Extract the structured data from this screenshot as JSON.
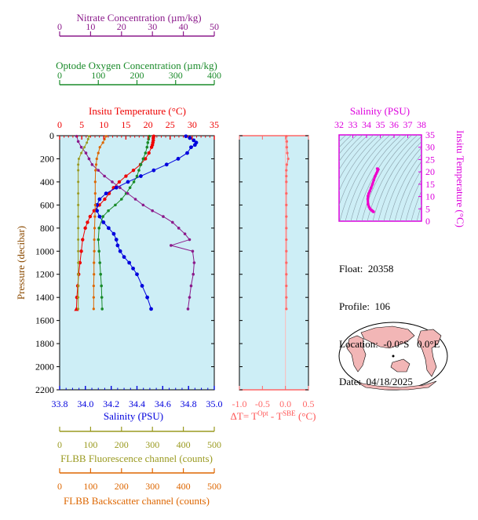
{
  "colors": {
    "nitrate": "#8b1a8b",
    "oxygen": "#1a8b2a",
    "temperature": "#ee0000",
    "salinity": "#0000dd",
    "fluorescence": "#9a9a20",
    "backscatter": "#dd6600",
    "delta_t": "#ff6666",
    "ts_axis": "#dd00dd",
    "plot_bg": "#cdeef6"
  },
  "float_info": {
    "float": "Float:  20358",
    "profile": "Profile:  106",
    "location": "Location:  -0.0°S   0.0°E",
    "date": "Date:  04/18/2025"
  },
  "chart_data": [
    {
      "type": "line",
      "id": "main-profile",
      "ylabel": "Pressure (decibar)",
      "y_ticks": [
        0,
        200,
        400,
        600,
        800,
        1000,
        1200,
        1400,
        1600,
        1800,
        2000,
        2200
      ],
      "ylim": [
        0,
        2200
      ],
      "y_inverted": true,
      "axes": {
        "nitrate": {
          "label": "Nitrate Concentration (µm/kg)",
          "range": [
            0,
            50
          ],
          "ticks": [
            0,
            10,
            20,
            30,
            40,
            50
          ]
        },
        "oxygen": {
          "label": "Optode Oxygen Concentration (µm/kg)",
          "range": [
            0,
            400
          ],
          "ticks": [
            0,
            100,
            200,
            300,
            400
          ]
        },
        "temperature": {
          "label": "Insitu Temperature (°C)",
          "range": [
            0,
            35
          ],
          "ticks": [
            0,
            5,
            10,
            15,
            20,
            25,
            30,
            35
          ]
        },
        "salinity": {
          "label": "Salinity (PSU)",
          "range": [
            33.8,
            35.0
          ],
          "ticks": [
            "33.8",
            "34.0",
            "34.2",
            "34.4",
            "34.6",
            "34.8",
            "35.0"
          ]
        },
        "fluorescence": {
          "label": "FLBB Fluorescence channel (counts)",
          "range": [
            0,
            500
          ],
          "ticks": [
            0,
            100,
            200,
            300,
            400,
            500
          ]
        },
        "backscatter": {
          "label": "FLBB Backscatter channel (counts)",
          "range": [
            0,
            500
          ],
          "ticks": [
            0,
            100,
            200,
            300,
            400,
            500
          ]
        }
      },
      "series": [
        {
          "id": "temperature",
          "pressure": [
            5,
            20,
            40,
            60,
            80,
            100,
            150,
            200,
            250,
            300,
            350,
            400,
            450,
            500,
            550,
            600,
            650,
            700,
            750,
            800,
            900,
            1000,
            1100,
            1200,
            1300,
            1400,
            1500
          ],
          "values": [
            21.3,
            21.2,
            21.2,
            21.1,
            21.0,
            20.8,
            20.2,
            19.4,
            18.3,
            16.7,
            15.0,
            13.5,
            12.2,
            11.2,
            10.2,
            9.0,
            7.8,
            6.9,
            6.3,
            5.8,
            5.2,
            4.9,
            4.6,
            4.3,
            4.1,
            3.9,
            3.8
          ]
        },
        {
          "id": "salinity",
          "pressure": [
            5,
            20,
            40,
            60,
            80,
            100,
            150,
            200,
            250,
            300,
            350,
            400,
            450,
            500,
            550,
            600,
            650,
            700,
            750,
            800,
            850,
            900,
            950,
            1000,
            1050,
            1100,
            1150,
            1200,
            1300,
            1400,
            1500
          ],
          "values": [
            34.78,
            34.81,
            34.84,
            34.86,
            34.85,
            34.82,
            34.79,
            34.72,
            34.63,
            34.53,
            34.43,
            34.33,
            34.24,
            34.16,
            34.11,
            34.09,
            34.09,
            34.11,
            34.14,
            34.18,
            34.22,
            34.24,
            34.25,
            34.27,
            34.3,
            34.34,
            34.37,
            34.4,
            34.44,
            34.48,
            34.51
          ]
        },
        {
          "id": "oxygen",
          "pressure": [
            5,
            30,
            60,
            100,
            150,
            200,
            250,
            300,
            350,
            400,
            450,
            500,
            550,
            600,
            650,
            700,
            800,
            900,
            1000,
            1100,
            1200,
            1300,
            1400,
            1500
          ],
          "values": [
            232,
            230,
            228,
            226,
            222,
            216,
            210,
            205,
            200,
            192,
            182,
            172,
            160,
            144,
            126,
            112,
            102,
            100,
            102,
            104,
            106,
            108,
            109,
            110
          ]
        },
        {
          "id": "nitrate",
          "pressure": [
            5,
            50,
            100,
            150,
            200,
            250,
            300,
            350,
            400,
            450,
            500,
            550,
            600,
            650,
            700,
            750,
            800,
            850,
            900,
            950,
            1000,
            1100,
            1200,
            1300,
            1400,
            1500
          ],
          "values": [
            5.5,
            6.0,
            7.0,
            8.5,
            9.5,
            10.5,
            12.5,
            14.5,
            17.0,
            19.5,
            22.0,
            24.5,
            27.0,
            30.0,
            33.5,
            36.5,
            38.5,
            40.5,
            42.0,
            36.0,
            43.0,
            43.5,
            43.2,
            42.5,
            42.0,
            41.5
          ]
        },
        {
          "id": "fluorescence",
          "pressure": [
            5,
            30,
            60,
            100,
            150,
            200,
            250,
            300,
            400,
            500,
            600,
            700,
            800,
            900,
            1000,
            1100,
            1200,
            1300,
            1400,
            1500
          ],
          "values": [
            95,
            92,
            88,
            80,
            70,
            62,
            60,
            60,
            60,
            60,
            60,
            60,
            60,
            60,
            60,
            60,
            60,
            60,
            60,
            60
          ]
        },
        {
          "id": "backscatter",
          "pressure": [
            5,
            30,
            60,
            100,
            150,
            200,
            250,
            300,
            400,
            500,
            600,
            700,
            800,
            900,
            1000,
            1100,
            1200,
            1300,
            1400,
            1500
          ],
          "values": [
            150,
            145,
            140,
            130,
            125,
            120,
            118,
            116,
            115,
            115,
            115,
            114,
            113,
            112,
            112,
            111,
            111,
            110,
            110,
            110
          ]
        }
      ]
    },
    {
      "type": "line",
      "id": "delta-t",
      "xlabel": "ΔT= T",
      "xlabel_sup1": "Opt",
      "xlabel_mid": " - T",
      "xlabel_sup2": "SBE",
      "xlabel_end": " (°C)",
      "xlim": [
        -1.0,
        0.5
      ],
      "x_ticks": [
        "-1.0",
        "-0.5",
        "0.0",
        "0.5"
      ],
      "ylim": [
        0,
        2200
      ],
      "pressure": [
        5,
        50,
        100,
        150,
        200,
        250,
        300,
        350,
        400,
        500,
        600,
        700,
        800,
        900,
        1000,
        1100,
        1200,
        1300,
        1400,
        1500
      ],
      "values": [
        0.02,
        0.03,
        0.03,
        0.04,
        0.06,
        0.03,
        0.02,
        0.02,
        0.02,
        0.02,
        0.02,
        0.02,
        0.02,
        0.02,
        0.02,
        0.02,
        0.02,
        0.02,
        0.02,
        0.02
      ]
    },
    {
      "type": "line",
      "id": "ts-diagram",
      "xlabel": "Salinity (PSU)",
      "ylabel": "Insitu Temperature (°C)",
      "xlim": [
        32,
        38
      ],
      "ylim": [
        0,
        35
      ],
      "x_ticks": [
        32,
        33,
        34,
        35,
        36,
        37,
        38
      ],
      "y_ticks": [
        0,
        5,
        10,
        15,
        20,
        25,
        30,
        35
      ],
      "salinity": [
        34.51,
        34.48,
        34.44,
        34.4,
        34.34,
        34.27,
        34.24,
        34.18,
        34.11,
        34.09,
        34.11,
        34.16,
        34.24,
        34.33,
        34.43,
        34.53,
        34.63,
        34.72,
        34.79,
        34.82,
        34.85,
        34.81,
        34.78
      ],
      "temperature": [
        3.8,
        3.9,
        4.1,
        4.3,
        4.6,
        4.9,
        5.2,
        5.8,
        6.9,
        9.0,
        10.2,
        11.2,
        12.2,
        13.5,
        15.0,
        16.7,
        18.3,
        19.4,
        20.2,
        20.8,
        21.0,
        21.2,
        21.3
      ]
    }
  ]
}
